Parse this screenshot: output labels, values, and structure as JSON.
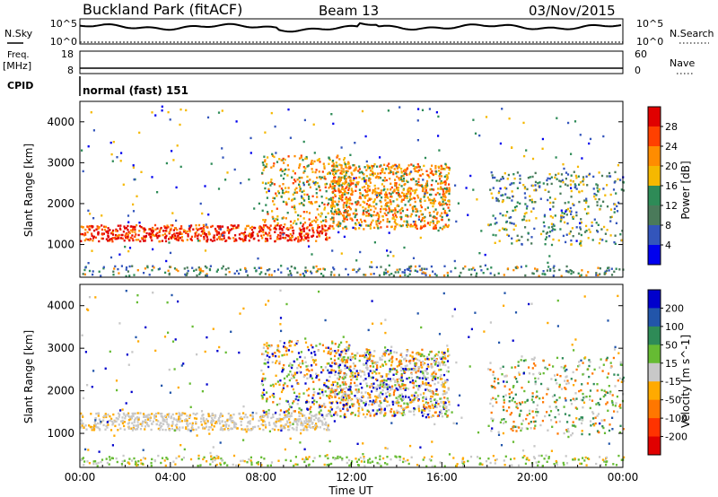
{
  "header": {
    "station": "Buckland Park (fitACF)",
    "beam": "Beam 13",
    "date": "03/Nov/2015"
  },
  "top_panels": {
    "nsky_label": "N.Sky",
    "nsky_ticks": [
      "10^5",
      "10^0"
    ],
    "nsearch_label": "N.Search",
    "nsearch_ticks": [
      "10^5",
      "10^0"
    ],
    "freq_label": "Freq.",
    "freq_unit": "[MHz]",
    "freq_ticks": [
      "18",
      "8"
    ],
    "nave_label": "Nave",
    "nave_ticks": [
      "60",
      "0"
    ],
    "cpid_label": "CPID",
    "cpid_value": "normal (fast) 151"
  },
  "chart_data": [
    {
      "type": "heatmap",
      "name": "power",
      "ylabel": "Slant Range [km]",
      "ylim": [
        200,
        4500
      ],
      "yticks": [
        1000,
        2000,
        3000,
        4000
      ],
      "xlim": [
        0,
        24
      ],
      "colorbar": {
        "label": "Power [dB]",
        "ticks": [
          "28",
          "24",
          "20",
          "16",
          "12",
          "8",
          "4"
        ],
        "colors": [
          "#e00000",
          "#ff4000",
          "#ff8c00",
          "#f5b800",
          "#2e8b57",
          "#4a7a5a",
          "#3355bb",
          "#0000ee"
        ]
      }
    },
    {
      "type": "heatmap",
      "name": "velocity",
      "ylabel": "Slant Range [km]",
      "ylim": [
        200,
        4500
      ],
      "yticks": [
        1000,
        2000,
        3000,
        4000
      ],
      "xlim": [
        0,
        24
      ],
      "xlabel": "Time UT",
      "xticks": [
        "00:00",
        "04:00",
        "08:00",
        "12:00",
        "16:00",
        "20:00",
        "00:00"
      ],
      "colorbar": {
        "label": "Velocity [m s^-1]",
        "ticks": [
          "200",
          "100",
          "50",
          "15",
          "-15",
          "-50",
          "-100",
          "-200"
        ],
        "colors": [
          "#0000cc",
          "#2255aa",
          "#2e8b57",
          "#66bb33",
          "#c8c8c8",
          "#ffaa00",
          "#ff7700",
          "#ff3300",
          "#e00000"
        ]
      }
    }
  ]
}
